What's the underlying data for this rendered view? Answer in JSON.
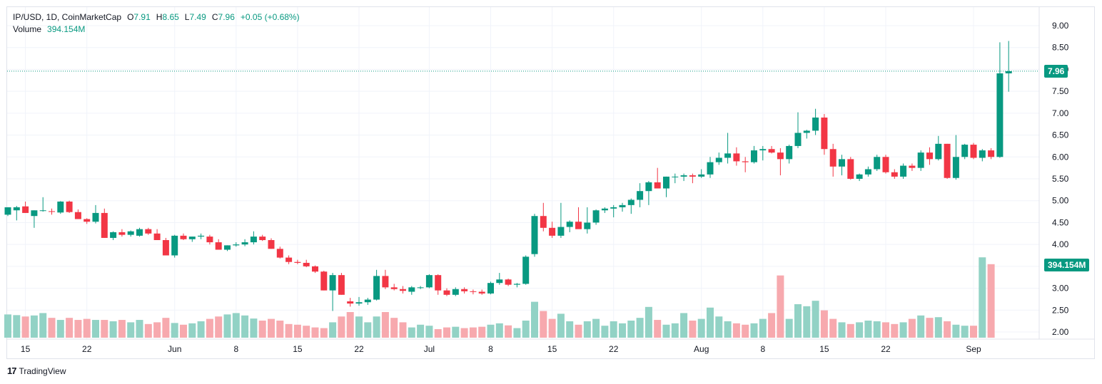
{
  "legend": {
    "symbol": "IP/USD, 1D, CoinMarketCap",
    "open_label": "O",
    "open": "7.91",
    "high_label": "H",
    "high": "8.65",
    "low_label": "L",
    "low": "7.49",
    "close_label": "C",
    "close": "7.96",
    "change": "+0.05 (+0.68%)",
    "volume_label": "Volume",
    "volume": "394.154M"
  },
  "tags": {
    "price": "7.96",
    "volume": "394.154M"
  },
  "brand": {
    "logo": "17",
    "name": "TradingView"
  },
  "colors": {
    "up": "#089981",
    "down": "#f23645",
    "up_vol": "#92d2c5",
    "down_vol": "#f7a9ae",
    "grid": "#f0f3fa",
    "text": "#131722"
  },
  "chart_data": {
    "type": "candlestick",
    "y_ticks": [
      "9.00",
      "8.50",
      "8.00",
      "7.50",
      "7.00",
      "6.50",
      "6.00",
      "5.50",
      "5.00",
      "4.50",
      "4.00",
      "3.50",
      "3.00",
      "2.50",
      "2.00"
    ],
    "ylim": [
      1.85,
      9.2
    ],
    "x_ticks": [
      {
        "label": "15",
        "index": 2
      },
      {
        "label": "22",
        "index": 9
      },
      {
        "label": "Jun",
        "index": 19
      },
      {
        "label": "8",
        "index": 26
      },
      {
        "label": "15",
        "index": 33
      },
      {
        "label": "22",
        "index": 40
      },
      {
        "label": "Jul",
        "index": 48
      },
      {
        "label": "8",
        "index": 55
      },
      {
        "label": "15",
        "index": 62
      },
      {
        "label": "22",
        "index": 69
      },
      {
        "label": "Aug",
        "index": 79
      },
      {
        "label": "8",
        "index": 86
      },
      {
        "label": "15",
        "index": 93
      },
      {
        "label": "22",
        "index": 100
      },
      {
        "label": "Sep",
        "index": 110
      }
    ],
    "last_price": 7.96,
    "ohlc": [
      [
        4.68,
        4.85,
        4.65,
        4.85
      ],
      [
        4.78,
        4.88,
        4.55,
        4.85
      ],
      [
        4.87,
        4.98,
        4.72,
        4.72
      ],
      [
        4.65,
        4.78,
        4.38,
        4.78
      ],
      [
        4.78,
        5.08,
        4.75,
        4.78
      ],
      [
        4.76,
        4.82,
        4.68,
        4.75
      ],
      [
        4.73,
        4.99,
        4.7,
        4.98
      ],
      [
        4.98,
        5.0,
        4.72,
        4.74
      ],
      [
        4.74,
        4.8,
        4.58,
        4.58
      ],
      [
        4.58,
        4.6,
        4.47,
        4.52
      ],
      [
        4.52,
        4.9,
        4.48,
        4.72
      ],
      [
        4.72,
        4.82,
        4.15,
        4.15
      ],
      [
        4.15,
        4.3,
        4.1,
        4.28
      ],
      [
        4.28,
        4.35,
        4.18,
        4.22
      ],
      [
        4.22,
        4.32,
        4.18,
        4.3
      ],
      [
        4.2,
        4.38,
        4.18,
        4.35
      ],
      [
        4.35,
        4.38,
        4.22,
        4.25
      ],
      [
        4.25,
        4.35,
        4.1,
        4.1
      ],
      [
        4.1,
        4.15,
        3.75,
        3.75
      ],
      [
        3.75,
        4.22,
        3.7,
        4.2
      ],
      [
        4.2,
        4.25,
        4.1,
        4.12
      ],
      [
        4.12,
        4.18,
        4.06,
        4.18
      ],
      [
        4.18,
        4.25,
        4.12,
        4.2
      ],
      [
        4.18,
        4.22,
        4.0,
        4.05
      ],
      [
        4.05,
        4.12,
        3.88,
        3.88
      ],
      [
        3.88,
        3.98,
        3.85,
        3.98
      ],
      [
        3.98,
        4.05,
        3.95,
        4.0
      ],
      [
        4.0,
        4.12,
        3.96,
        4.05
      ],
      [
        4.05,
        4.3,
        4.0,
        4.18
      ],
      [
        4.18,
        4.22,
        4.08,
        4.1
      ],
      [
        4.1,
        4.14,
        3.9,
        3.9
      ],
      [
        3.9,
        3.95,
        3.68,
        3.7
      ],
      [
        3.7,
        3.75,
        3.55,
        3.6
      ],
      [
        3.6,
        3.65,
        3.55,
        3.58
      ],
      [
        3.58,
        3.65,
        3.48,
        3.5
      ],
      [
        3.5,
        3.52,
        3.35,
        3.38
      ],
      [
        3.38,
        3.4,
        2.95,
        2.95
      ],
      [
        2.95,
        3.35,
        2.48,
        3.3
      ],
      [
        3.3,
        3.35,
        2.85,
        2.85
      ],
      [
        2.7,
        2.78,
        2.58,
        2.65
      ],
      [
        2.65,
        2.8,
        2.6,
        2.68
      ],
      [
        2.68,
        2.78,
        2.62,
        2.74
      ],
      [
        2.74,
        3.42,
        2.72,
        3.28
      ],
      [
        3.28,
        3.42,
        2.98,
        3.02
      ],
      [
        3.02,
        3.1,
        2.95,
        2.98
      ],
      [
        2.98,
        3.05,
        2.88,
        2.94
      ],
      [
        2.92,
        3.05,
        2.85,
        3.02
      ],
      [
        3.02,
        3.05,
        2.98,
        3.02
      ],
      [
        3.02,
        3.32,
        3.0,
        3.3
      ],
      [
        3.3,
        3.32,
        2.85,
        2.95
      ],
      [
        2.95,
        3.0,
        2.82,
        2.85
      ],
      [
        2.85,
        3.02,
        2.82,
        2.98
      ],
      [
        2.98,
        3.02,
        2.88,
        2.93
      ],
      [
        2.93,
        2.97,
        2.86,
        2.92
      ],
      [
        2.92,
        2.97,
        2.85,
        2.88
      ],
      [
        2.88,
        3.15,
        2.86,
        3.12
      ],
      [
        3.12,
        3.35,
        3.08,
        3.2
      ],
      [
        3.2,
        3.22,
        3.05,
        3.08
      ],
      [
        3.08,
        3.12,
        3.02,
        3.1
      ],
      [
        3.1,
        3.75,
        3.08,
        3.72
      ],
      [
        3.78,
        4.7,
        3.72,
        4.65
      ],
      [
        4.65,
        4.95,
        4.3,
        4.38
      ],
      [
        4.38,
        4.52,
        4.15,
        4.2
      ],
      [
        4.2,
        4.95,
        4.15,
        4.4
      ],
      [
        4.4,
        4.55,
        4.28,
        4.52
      ],
      [
        4.52,
        4.85,
        4.4,
        4.35
      ],
      [
        4.35,
        4.85,
        4.25,
        4.5
      ],
      [
        4.5,
        4.8,
        4.45,
        4.78
      ],
      [
        4.78,
        4.85,
        4.72,
        4.82
      ],
      [
        4.82,
        4.9,
        4.62,
        4.85
      ],
      [
        4.85,
        4.95,
        4.75,
        4.9
      ],
      [
        4.9,
        5.05,
        4.7,
        5.02
      ],
      [
        5.02,
        5.4,
        4.85,
        5.22
      ],
      [
        5.22,
        5.45,
        4.9,
        5.42
      ],
      [
        5.42,
        5.75,
        5.3,
        5.28
      ],
      [
        5.28,
        5.55,
        5.08,
        5.55
      ],
      [
        5.55,
        5.62,
        5.4,
        5.55
      ],
      [
        5.55,
        5.62,
        5.45,
        5.58
      ],
      [
        5.58,
        5.62,
        5.4,
        5.55
      ],
      [
        5.55,
        5.72,
        5.52,
        5.6
      ],
      [
        5.6,
        6.0,
        5.52,
        5.88
      ],
      [
        5.88,
        6.1,
        5.82,
        5.98
      ],
      [
        5.98,
        6.55,
        5.85,
        6.08
      ],
      [
        6.08,
        6.22,
        5.8,
        5.9
      ],
      [
        5.9,
        6.0,
        5.65,
        5.88
      ],
      [
        5.88,
        6.25,
        5.85,
        6.15
      ],
      [
        6.15,
        6.25,
        5.92,
        6.18
      ],
      [
        6.18,
        6.25,
        6.08,
        6.1
      ],
      [
        6.1,
        6.2,
        5.58,
        5.95
      ],
      [
        5.95,
        6.28,
        5.85,
        6.25
      ],
      [
        6.25,
        7.02,
        6.2,
        6.55
      ],
      [
        6.55,
        6.62,
        6.42,
        6.6
      ],
      [
        6.6,
        7.1,
        6.5,
        6.9
      ],
      [
        6.9,
        6.98,
        6.05,
        6.18
      ],
      [
        6.18,
        6.3,
        5.55,
        5.78
      ],
      [
        5.78,
        6.05,
        5.58,
        5.95
      ],
      [
        5.95,
        6.0,
        5.48,
        5.5
      ],
      [
        5.5,
        5.62,
        5.45,
        5.6
      ],
      [
        5.6,
        5.78,
        5.55,
        5.72
      ],
      [
        5.72,
        6.05,
        5.68,
        6.0
      ],
      [
        6.0,
        6.05,
        5.62,
        5.65
      ],
      [
        5.65,
        5.72,
        5.5,
        5.55
      ],
      [
        5.55,
        5.85,
        5.5,
        5.8
      ],
      [
        5.8,
        5.85,
        5.68,
        5.75
      ],
      [
        5.75,
        6.15,
        5.68,
        6.1
      ],
      [
        6.1,
        6.22,
        5.82,
        5.95
      ],
      [
        5.95,
        6.48,
        5.92,
        6.3
      ],
      [
        6.3,
        6.3,
        5.5,
        5.52
      ],
      [
        5.52,
        6.5,
        5.48,
        6.0
      ],
      [
        6.0,
        6.3,
        5.95,
        6.28
      ],
      [
        6.28,
        6.32,
        5.95,
        5.98
      ],
      [
        5.98,
        6.18,
        5.9,
        6.15
      ],
      [
        6.15,
        6.2,
        5.95,
        6.0
      ],
      [
        6.0,
        8.62,
        5.98,
        7.91
      ],
      [
        7.91,
        8.65,
        7.49,
        7.96
      ]
    ],
    "volume_scale_max": 3.0,
    "volumes": [
      0.68,
      0.66,
      0.62,
      0.65,
      0.72,
      0.58,
      0.52,
      0.58,
      0.52,
      0.55,
      0.52,
      0.52,
      0.48,
      0.52,
      0.45,
      0.52,
      0.4,
      0.45,
      0.58,
      0.43,
      0.38,
      0.42,
      0.48,
      0.55,
      0.62,
      0.68,
      0.72,
      0.65,
      0.56,
      0.5,
      0.55,
      0.5,
      0.4,
      0.38,
      0.35,
      0.3,
      0.28,
      0.45,
      0.62,
      0.75,
      0.62,
      0.45,
      0.62,
      0.75,
      0.58,
      0.45,
      0.3,
      0.38,
      0.35,
      0.25,
      0.3,
      0.32,
      0.28,
      0.3,
      0.32,
      0.38,
      0.42,
      0.36,
      0.28,
      0.5,
      1.05,
      0.78,
      0.55,
      0.7,
      0.48,
      0.38,
      0.48,
      0.55,
      0.35,
      0.48,
      0.42,
      0.5,
      0.58,
      0.9,
      0.52,
      0.38,
      0.42,
      0.72,
      0.5,
      0.55,
      0.88,
      0.62,
      0.48,
      0.42,
      0.38,
      0.42,
      0.55,
      0.72,
      1.82,
      0.55,
      0.98,
      0.92,
      1.08,
      0.8,
      0.55,
      0.45,
      0.4,
      0.45,
      0.5,
      0.48,
      0.45,
      0.4,
      0.45,
      0.55,
      0.65,
      0.58,
      0.6,
      0.48,
      0.38,
      0.35,
      0.35,
      2.35,
      2.15
    ]
  }
}
